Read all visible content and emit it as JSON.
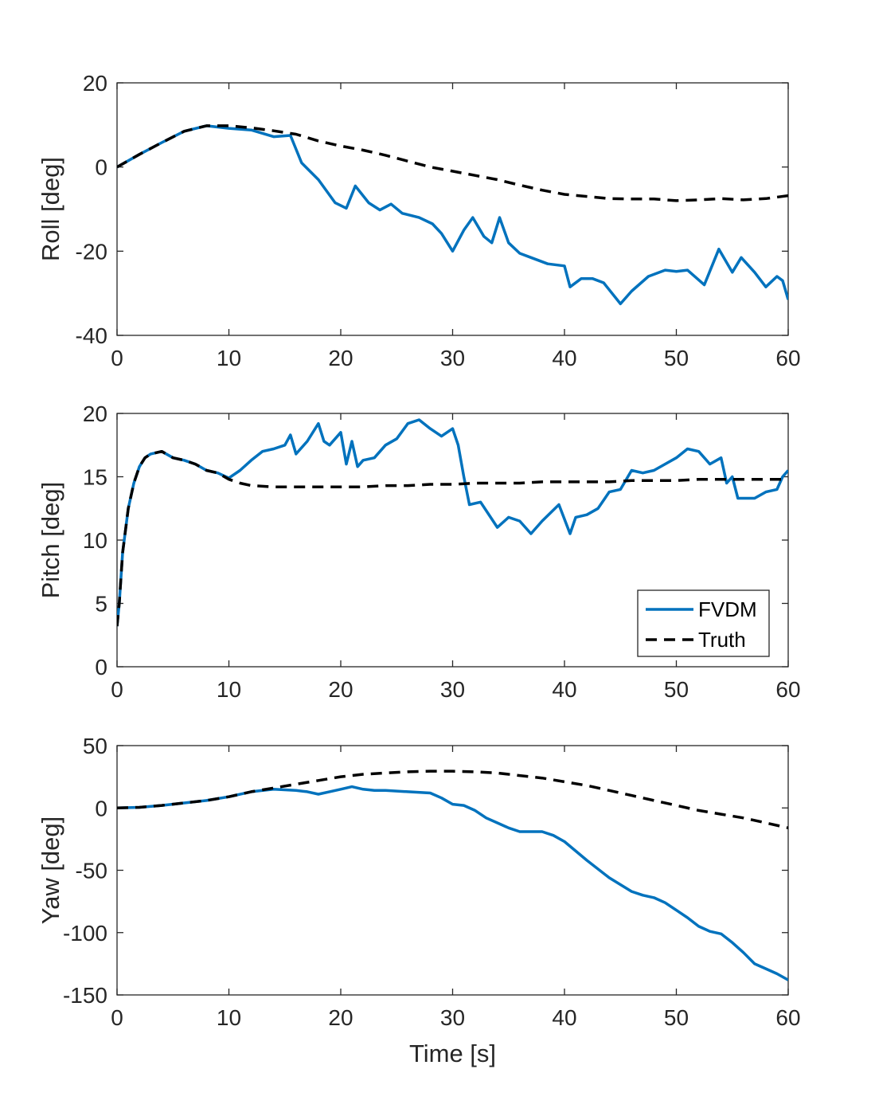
{
  "colors": {
    "estimate": "#0072BD",
    "truth": "#000000",
    "axis": "#262626",
    "background": "#ffffff"
  },
  "chart_data": [
    {
      "type": "line",
      "xlabel": "",
      "ylabel": "Roll [deg]",
      "xlim": [
        0,
        60
      ],
      "ylim": [
        -40,
        20
      ],
      "xticks": [
        "0",
        "10",
        "20",
        "30",
        "40",
        "50",
        "60"
      ],
      "yticks": [
        "20",
        "0",
        "-20",
        "-40"
      ],
      "grid": false,
      "series": [
        {
          "name": "FVDM",
          "style": "solid",
          "x": [
            0,
            2,
            4,
            6,
            8,
            10,
            12,
            14,
            15.5,
            16.5,
            18,
            19.5,
            20.5,
            21.3,
            22.5,
            23.5,
            24.5,
            25.5,
            27,
            28.2,
            29,
            30,
            31,
            31.8,
            32.8,
            33.5,
            34.2,
            35,
            36,
            37,
            38.5,
            40,
            40.5,
            41.5,
            42.5,
            43.5,
            45,
            46,
            47.5,
            49,
            50,
            51,
            52.5,
            53.8,
            55,
            55.8,
            57,
            58,
            59,
            59.5,
            60
          ],
          "y": [
            0,
            3,
            5.8,
            8.5,
            9.8,
            9.2,
            8.8,
            7.2,
            7.5,
            1,
            -3,
            -8.5,
            -9.8,
            -4.5,
            -8.5,
            -10.2,
            -8.8,
            -11,
            -12,
            -13.5,
            -15.8,
            -20,
            -15,
            -12,
            -16.5,
            -18,
            -12,
            -18,
            -20.5,
            -21.5,
            -23,
            -23.5,
            -28.5,
            -26.5,
            -26.5,
            -27.5,
            -32.5,
            -29.5,
            -26,
            -24.5,
            -24.8,
            -24.5,
            -28,
            -19.5,
            -25,
            -21.5,
            -25,
            -28.5,
            -26,
            -27,
            -31.5
          ]
        },
        {
          "name": "Truth",
          "style": "dashed",
          "x": [
            0,
            2,
            4,
            6,
            8,
            10,
            12,
            14,
            16,
            18,
            20,
            22,
            24,
            26,
            28,
            30,
            32,
            34,
            36,
            38,
            40,
            42,
            44,
            46,
            48,
            50,
            52,
            54,
            56,
            58,
            60
          ],
          "y": [
            0,
            3,
            5.8,
            8.5,
            9.8,
            9.8,
            9.3,
            8.6,
            7.8,
            6.2,
            5,
            4,
            2.8,
            1.4,
            0,
            -1,
            -2,
            -3,
            -4.3,
            -5.5,
            -6.5,
            -7,
            -7.5,
            -7.6,
            -7.6,
            -8,
            -7.8,
            -7.5,
            -7.8,
            -7.5,
            -6.8
          ]
        }
      ]
    },
    {
      "type": "line",
      "xlabel": "",
      "ylabel": "Pitch [deg]",
      "xlim": [
        0,
        60
      ],
      "ylim": [
        0,
        20
      ],
      "xticks": [
        "0",
        "10",
        "20",
        "30",
        "40",
        "50",
        "60"
      ],
      "yticks": [
        "20",
        "15",
        "10",
        "5",
        "0"
      ],
      "grid": false,
      "legend": {
        "position": "bottom-right",
        "entries": [
          "FVDM",
          "Truth"
        ]
      },
      "series": [
        {
          "name": "FVDM",
          "style": "solid",
          "x": [
            0,
            0.2,
            0.5,
            1,
            1.5,
            2,
            2.5,
            3,
            4,
            5,
            6,
            7,
            8,
            9,
            10,
            11,
            12,
            13,
            14,
            15,
            15.5,
            16,
            17,
            18,
            18.5,
            19,
            20,
            20.5,
            21,
            21.5,
            22,
            23,
            24,
            25,
            26,
            27,
            28,
            29,
            30,
            30.5,
            31,
            31.5,
            32.5,
            34,
            35,
            36,
            37,
            38,
            39.5,
            40.5,
            41,
            42,
            43,
            44,
            45,
            46,
            47,
            48,
            49,
            50,
            51,
            52,
            53,
            54,
            54.5,
            55,
            55.5,
            57,
            58,
            59,
            59.5,
            60
          ],
          "y": [
            3.2,
            5,
            9,
            12.5,
            14.5,
            15.8,
            16.5,
            16.8,
            17,
            16.5,
            16.3,
            16,
            15.5,
            15.3,
            14.9,
            15.5,
            16.3,
            17,
            17.2,
            17.5,
            18.3,
            16.8,
            17.8,
            19.2,
            17.8,
            17.5,
            18.5,
            16,
            17.8,
            15.8,
            16.3,
            16.5,
            17.5,
            18,
            19.2,
            19.5,
            18.8,
            18.2,
            18.8,
            17.5,
            15,
            12.8,
            13,
            11,
            11.8,
            11.5,
            10.5,
            11.5,
            12.8,
            10.5,
            11.8,
            12,
            12.5,
            13.8,
            14,
            15.5,
            15.3,
            15.5,
            16,
            16.5,
            17.2,
            17,
            16,
            16.5,
            14.5,
            15,
            13.3,
            13.3,
            13.8,
            14,
            15,
            15.5
          ]
        },
        {
          "name": "Truth",
          "style": "dashed",
          "x": [
            0,
            0.2,
            0.5,
            1,
            1.5,
            2,
            2.5,
            3,
            4,
            5,
            6,
            7,
            8,
            9,
            10,
            11,
            12,
            14,
            16,
            18,
            20,
            22,
            24,
            26,
            28,
            30,
            32,
            34,
            36,
            38,
            40,
            42,
            44,
            46,
            48,
            50,
            52,
            54,
            56,
            58,
            60
          ],
          "y": [
            3.2,
            5,
            9,
            12.5,
            14.5,
            15.8,
            16.5,
            16.8,
            17,
            16.5,
            16.3,
            16,
            15.5,
            15.3,
            14.8,
            14.5,
            14.3,
            14.2,
            14.2,
            14.2,
            14.2,
            14.2,
            14.3,
            14.3,
            14.4,
            14.4,
            14.5,
            14.5,
            14.5,
            14.6,
            14.6,
            14.6,
            14.6,
            14.7,
            14.7,
            14.7,
            14.8,
            14.8,
            14.8,
            14.8,
            14.8
          ]
        }
      ]
    },
    {
      "type": "line",
      "xlabel": "Time [s]",
      "ylabel": "Yaw [deg]",
      "xlim": [
        0,
        60
      ],
      "ylim": [
        -150,
        50
      ],
      "xticks": [
        "0",
        "10",
        "20",
        "30",
        "40",
        "50",
        "60"
      ],
      "yticks": [
        "50",
        "0",
        "-50",
        "-100",
        "-150"
      ],
      "grid": false,
      "series": [
        {
          "name": "FVDM",
          "style": "solid",
          "x": [
            0,
            2,
            4,
            6,
            8,
            10,
            12,
            14,
            16,
            17,
            18,
            19,
            20,
            21,
            22,
            23,
            24,
            26,
            28,
            29,
            30,
            31,
            32,
            33,
            34,
            35,
            36,
            37,
            38,
            39,
            40,
            42,
            44,
            46,
            47,
            48,
            49,
            50,
            51,
            52,
            53,
            54,
            55,
            56,
            57,
            58,
            59,
            60
          ],
          "y": [
            0,
            0.5,
            2,
            4,
            6,
            9,
            13,
            15,
            14,
            13,
            11,
            13,
            15,
            17,
            15,
            14,
            14,
            13,
            12,
            8,
            3,
            2,
            -2,
            -8,
            -12,
            -16,
            -19,
            -19,
            -19,
            -22,
            -27,
            -42,
            -56,
            -67,
            -70,
            -72,
            -76,
            -82,
            -88,
            -95,
            -99,
            -101,
            -108,
            -116,
            -125,
            -129,
            -133,
            -138
          ]
        },
        {
          "name": "Truth",
          "style": "dashed",
          "x": [
            0,
            2,
            4,
            6,
            8,
            10,
            12,
            14,
            16,
            18,
            20,
            22,
            24,
            26,
            28,
            30,
            32,
            34,
            36,
            38,
            40,
            42,
            44,
            46,
            48,
            50,
            52,
            54,
            56,
            58,
            60
          ],
          "y": [
            0,
            0.5,
            2,
            4,
            6,
            9,
            13,
            16,
            19,
            22,
            25,
            27,
            28,
            29,
            29.5,
            29.5,
            29,
            28,
            26,
            24,
            21,
            18,
            14,
            10,
            6,
            2,
            -2,
            -5,
            -8,
            -12,
            -16
          ]
        }
      ]
    }
  ]
}
